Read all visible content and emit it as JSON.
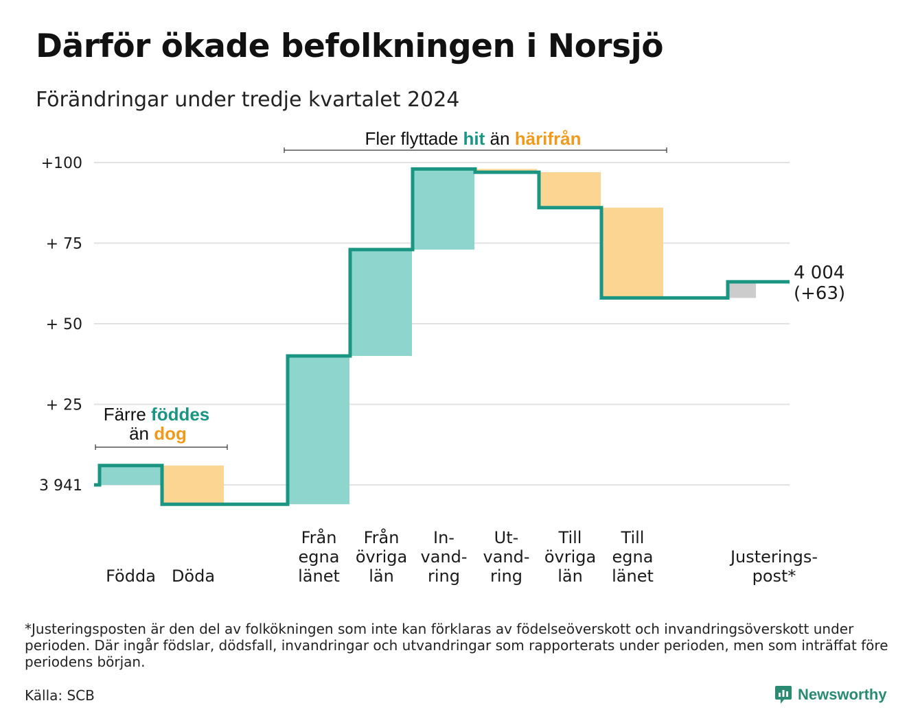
{
  "title": "Därför ökade befolkningen i Norsjö",
  "subtitle": "Förändringar under tredje kvartalet 2024",
  "chart_data": {
    "type": "waterfall",
    "start_value": 3941,
    "end_value": 4004,
    "end_label_line1": "4 004",
    "end_label_line2": "(+63)",
    "ylim": [
      -6,
      101
    ],
    "y_ticks": [
      {
        "value": 100,
        "label": "+100"
      },
      {
        "value": 75,
        "label": "+ 75"
      },
      {
        "value": 50,
        "label": "+ 50"
      },
      {
        "value": 25,
        "label": "+ 25"
      },
      {
        "value": 0,
        "label": "3 941"
      }
    ],
    "grid": true,
    "steps": [
      {
        "category_lines": [
          "Födda"
        ],
        "change": 6,
        "kind": "in"
      },
      {
        "category_lines": [
          "Döda"
        ],
        "change": -12,
        "kind": "out"
      },
      {
        "category_lines": [
          "Från",
          "egna",
          "länet"
        ],
        "change": 46,
        "kind": "in"
      },
      {
        "category_lines": [
          "Från",
          "övriga",
          "län"
        ],
        "change": 33,
        "kind": "in"
      },
      {
        "category_lines": [
          "In-",
          "vand-",
          "ring"
        ],
        "change": 25,
        "kind": "in"
      },
      {
        "category_lines": [
          "Ut-",
          "vand-",
          "ring"
        ],
        "change": -1,
        "kind": "out"
      },
      {
        "category_lines": [
          "Till",
          "övriga",
          "län"
        ],
        "change": -11,
        "kind": "out"
      },
      {
        "category_lines": [
          "Till",
          "egna",
          "länet"
        ],
        "change": -28,
        "kind": "out"
      },
      {
        "category_lines": [
          "Justerings-",
          "post*"
        ],
        "change": 5,
        "kind": "adjust"
      }
    ],
    "annotations": {
      "births": {
        "line1_prefix": "Färre ",
        "line1_highlight": "föddes",
        "line2_prefix": "än ",
        "line2_highlight": "dog"
      },
      "migration": {
        "prefix": "Fler flyttade ",
        "highlight_in": "hit",
        "middle": " än ",
        "highlight_out": "härifrån"
      }
    },
    "colors": {
      "line": "#1a9582",
      "in_fill": "#8ed5cd",
      "out_fill": "#fbd591",
      "adjust_fill": "#cccccc",
      "in_text": "#1a9582",
      "out_text": "#f09a1c",
      "grid": "#e2e2e2"
    }
  },
  "footnote": "*Justeringsposten är den del av folkökningen som inte kan förklaras av födelseöverskott och invandringsöverskott under perioden. Där ingår födslar, dödsfall, invandringar och utvandringar som rapporterats under perioden, men som inträffat före periodens början.",
  "source": "Källa: SCB",
  "brand": {
    "name": "Newsworthy",
    "icon": "newsworthy-logo-icon"
  }
}
